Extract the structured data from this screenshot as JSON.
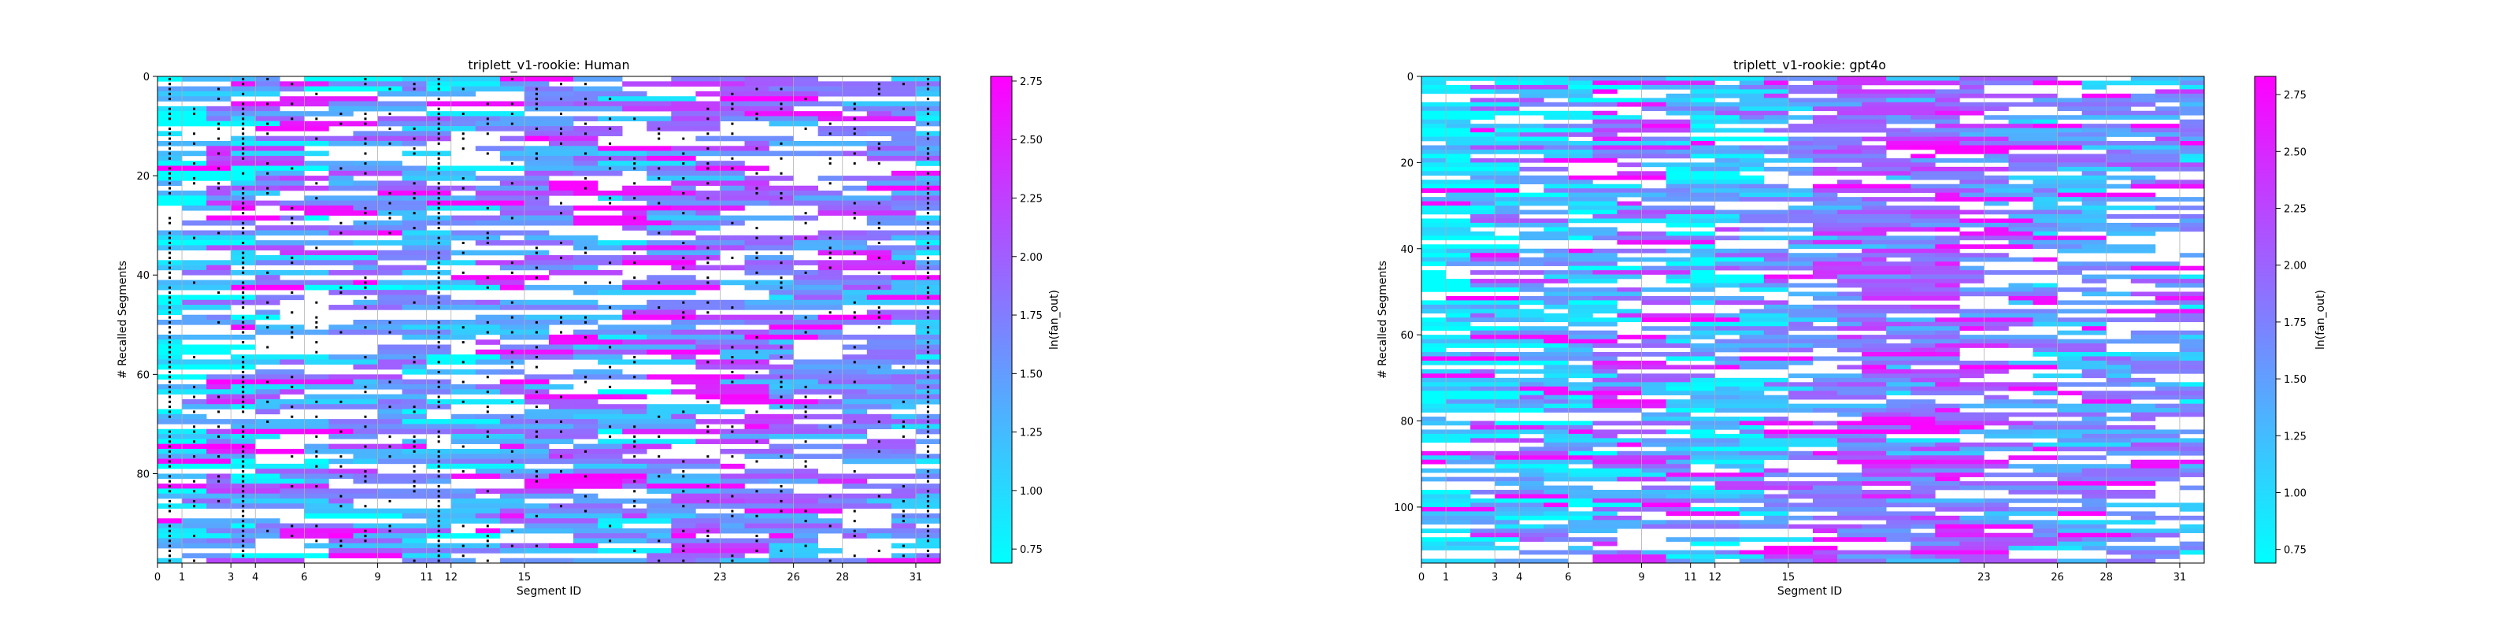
{
  "chart_data": [
    {
      "type": "heatmap",
      "title": "triplett_v1-rookie: Human",
      "xlabel": "Segment ID",
      "ylabel": "# Recalled Segments",
      "colorbar_label": "ln(fan_out)",
      "xticks": [
        0,
        1,
        3,
        4,
        6,
        9,
        11,
        12,
        15,
        23,
        26,
        28,
        31
      ],
      "yticks": [
        0,
        20,
        40,
        60,
        80
      ],
      "xlim": [
        0,
        32
      ],
      "ylim": [
        98,
        0
      ],
      "n_rows": 98,
      "colorbar_range": [
        0.69,
        2.77
      ],
      "colorbar_ticks": [
        "0.75",
        "1.00",
        "1.25",
        "1.50",
        "1.75",
        "2.00",
        "2.25",
        "2.50",
        "2.75"
      ],
      "colormap": [
        "#00ffff",
        "#ff00ff"
      ],
      "dotted_columns": [
        0,
        3,
        11,
        31
      ]
    },
    {
      "type": "heatmap",
      "title": "triplett_v1-rookie: gpt4o",
      "xlabel": "Segment ID",
      "ylabel": "# Recalled Segments",
      "colorbar_label": "ln(fan_out)",
      "xticks": [
        0,
        1,
        3,
        4,
        6,
        9,
        11,
        12,
        15,
        23,
        26,
        28,
        31
      ],
      "yticks": [
        0,
        20,
        40,
        60,
        80,
        100
      ],
      "xlim": [
        0,
        32
      ],
      "ylim": [
        113,
        0
      ],
      "n_rows": 113,
      "colorbar_range": [
        0.69,
        2.83
      ],
      "colorbar_ticks": [
        "0.75",
        "1.00",
        "1.25",
        "1.50",
        "1.75",
        "2.00",
        "2.25",
        "2.50",
        "2.75"
      ],
      "colormap": [
        "#00ffff",
        "#ff00ff"
      ]
    }
  ]
}
